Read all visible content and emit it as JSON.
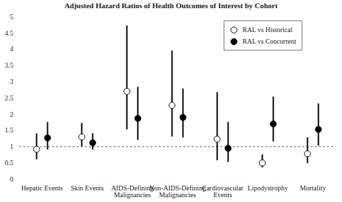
{
  "chart_data": {
    "type": "errorbar",
    "title": "Adjusted Hazard Ratios of Health Outcomes of Interest by Cohort",
    "categories": [
      "Hepatic Events",
      "Skin Events",
      "AIDS-Defining\nMalignancies",
      "Non-AIDS-Defining\nMalignancies",
      "Cardiovascular\nEvents",
      "Lipodystrophy",
      "Mortality"
    ],
    "series": [
      {
        "name": "RAL vs Historical",
        "color": "#000000",
        "marker": "open_circle",
        "values": [
          0.92,
          1.3,
          2.7,
          2.27,
          1.23,
          0.5,
          0.78
        ],
        "lower": [
          0.6,
          1.0,
          1.52,
          1.3,
          0.57,
          0.35,
          0.48
        ],
        "upper": [
          1.4,
          1.72,
          4.72,
          3.95,
          2.67,
          0.75,
          1.28
        ]
      },
      {
        "name": "RAL vs Concurrent",
        "color": "#000000",
        "marker": "circle",
        "values": [
          1.27,
          1.12,
          1.87,
          1.9,
          0.95,
          1.7,
          1.53
        ],
        "lower": [
          0.9,
          0.9,
          1.2,
          1.27,
          0.52,
          1.15,
          1.02
        ],
        "upper": [
          1.75,
          1.4,
          2.83,
          2.78,
          1.75,
          2.53,
          2.32
        ]
      }
    ],
    "ylim": [
      0,
      5
    ],
    "yticks": [
      0,
      0.5,
      1,
      1.5,
      2,
      2.5,
      3,
      3.5,
      4,
      4.5,
      5
    ],
    "reference_line": 1,
    "grid": false,
    "legend": "top-right"
  }
}
